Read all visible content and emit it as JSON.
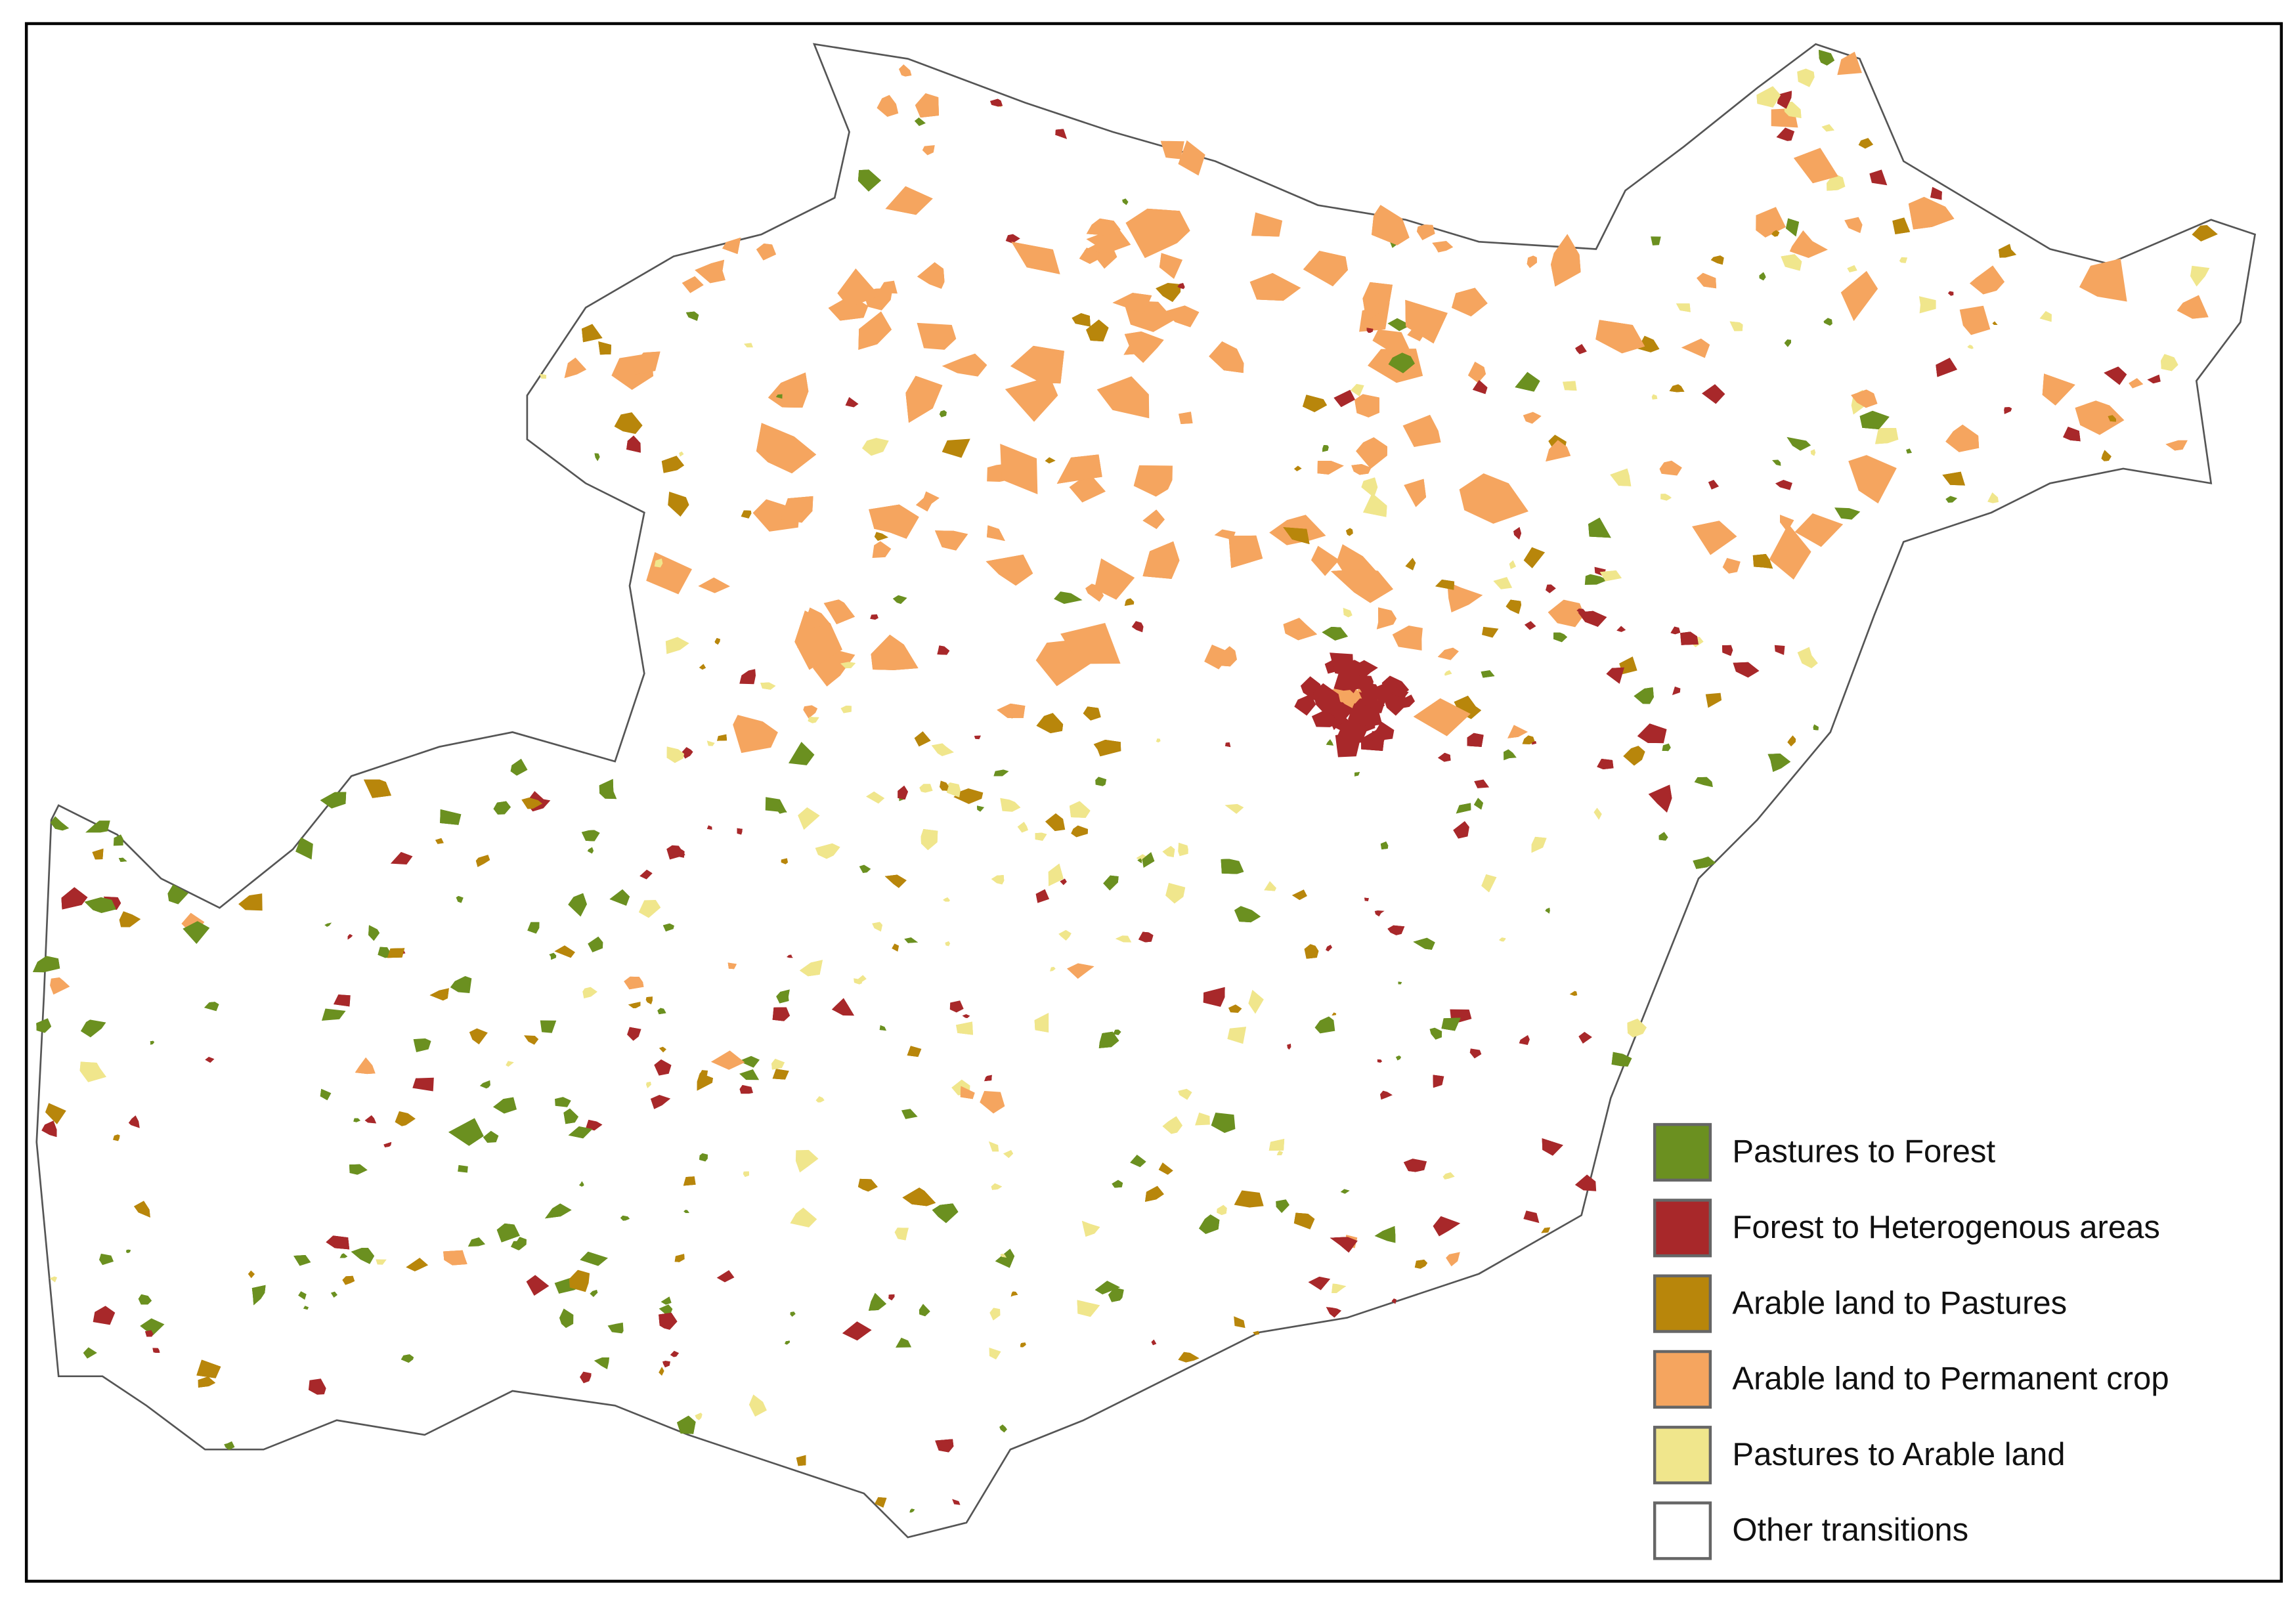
{
  "legend": {
    "items": [
      {
        "name": "Pastures to Forest",
        "color": "#6b9020"
      },
      {
        "name": "Forest to Heterogenous areas",
        "color": "#a8282a"
      },
      {
        "name": "Arable land to Pastures",
        "color": "#b8860b"
      },
      {
        "name": "Arable land to Permanent crop",
        "color": "#f5a55f"
      },
      {
        "name": "Pastures to Arable land",
        "color": "#f0e68c"
      },
      {
        "name": "Other transitions",
        "color": "#ffffff"
      }
    ]
  }
}
